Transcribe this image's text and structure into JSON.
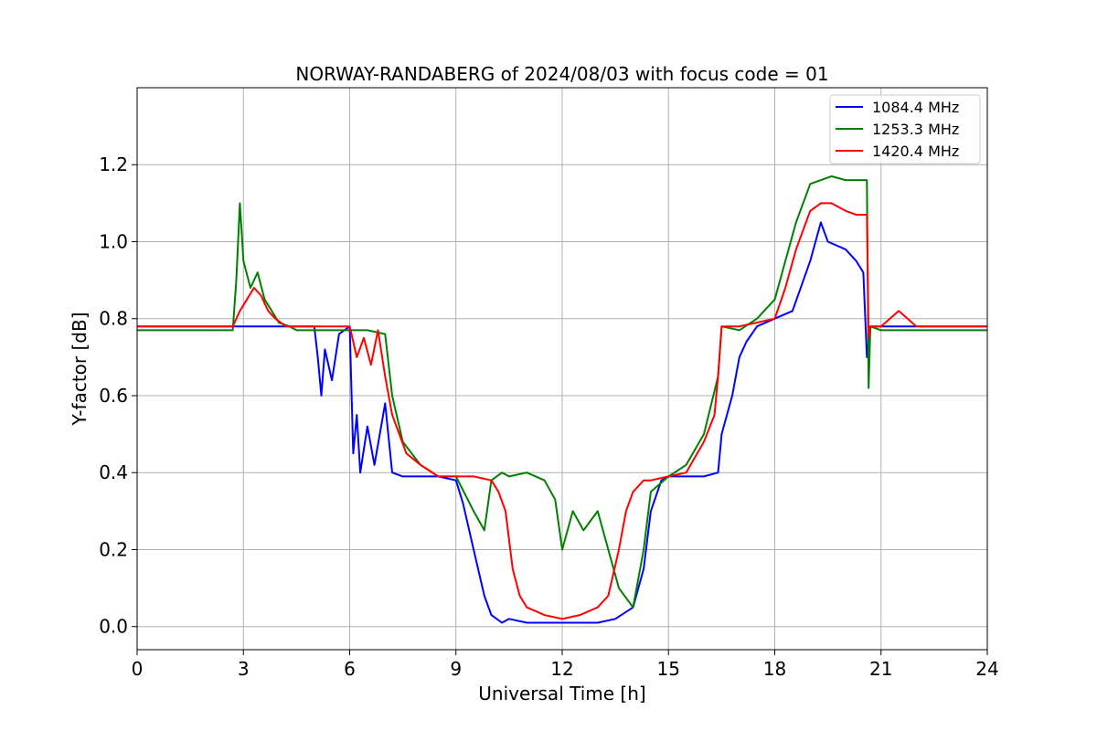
{
  "chart_data": {
    "type": "line",
    "title": "NORWAY-RANDABERG of 2024/08/03 with focus code = 01",
    "xlabel": "Universal Time [h]",
    "ylabel": "Y-factor [dB]",
    "xlim": [
      0,
      24
    ],
    "ylim": [
      -0.06,
      1.4
    ],
    "xticks": [
      0,
      3,
      6,
      9,
      12,
      15,
      18,
      21,
      24
    ],
    "yticks": [
      0.0,
      0.2,
      0.4,
      0.6,
      0.8,
      1.0,
      1.2
    ],
    "xtick_labels": [
      "0",
      "3",
      "6",
      "9",
      "12",
      "15",
      "18",
      "21",
      "24"
    ],
    "ytick_labels": [
      "0.0",
      "0.2",
      "0.4",
      "0.6",
      "0.8",
      "1.0",
      "1.2"
    ],
    "grid": true,
    "legend_position": "top-right",
    "series": [
      {
        "name": "1084.4 MHz",
        "color": "#0000ff",
        "x": [
          0.0,
          2.8,
          3.0,
          3.5,
          4.0,
          5.0,
          5.1,
          5.2,
          5.3,
          5.5,
          5.7,
          6.0,
          6.1,
          6.2,
          6.3,
          6.5,
          6.7,
          7.0,
          7.2,
          7.5,
          8.0,
          8.5,
          9.0,
          9.2,
          9.5,
          9.8,
          10.0,
          10.3,
          10.5,
          11.0,
          11.5,
          12.0,
          12.5,
          13.0,
          13.5,
          14.0,
          14.3,
          14.5,
          14.8,
          15.0,
          15.5,
          16.0,
          16.4,
          16.5,
          16.8,
          17.0,
          17.2,
          17.5,
          18.0,
          18.5,
          19.0,
          19.3,
          19.5,
          20.0,
          20.3,
          20.5,
          20.6,
          20.7,
          21.0,
          22.0,
          23.0,
          24.0
        ],
        "y": [
          0.78,
          0.78,
          0.78,
          0.78,
          0.78,
          0.78,
          0.7,
          0.6,
          0.72,
          0.64,
          0.76,
          0.78,
          0.45,
          0.55,
          0.4,
          0.52,
          0.42,
          0.58,
          0.4,
          0.39,
          0.39,
          0.39,
          0.38,
          0.32,
          0.2,
          0.08,
          0.03,
          0.01,
          0.02,
          0.01,
          0.01,
          0.01,
          0.01,
          0.01,
          0.02,
          0.05,
          0.15,
          0.3,
          0.38,
          0.39,
          0.39,
          0.39,
          0.4,
          0.5,
          0.6,
          0.7,
          0.74,
          0.78,
          0.8,
          0.82,
          0.95,
          1.05,
          1.0,
          0.98,
          0.95,
          0.92,
          0.7,
          0.78,
          0.78,
          0.78,
          0.78,
          0.78
        ]
      },
      {
        "name": "1253.3 MHz",
        "color": "#008000",
        "x": [
          0.0,
          2.7,
          2.8,
          2.9,
          3.0,
          3.2,
          3.4,
          3.6,
          3.8,
          4.0,
          4.3,
          4.5,
          5.0,
          6.0,
          6.5,
          7.0,
          7.2,
          7.5,
          8.0,
          8.5,
          9.0,
          9.5,
          9.8,
          10.0,
          10.3,
          10.5,
          11.0,
          11.5,
          11.8,
          12.0,
          12.3,
          12.6,
          13.0,
          13.3,
          13.6,
          14.0,
          14.3,
          14.5,
          15.0,
          15.5,
          16.0,
          16.4,
          16.5,
          17.0,
          17.5,
          18.0,
          18.3,
          18.6,
          19.0,
          19.3,
          19.6,
          20.0,
          20.3,
          20.6,
          20.65,
          20.7,
          21.0,
          22.0,
          23.0,
          24.0
        ],
        "y": [
          0.77,
          0.77,
          0.9,
          1.1,
          0.95,
          0.88,
          0.92,
          0.85,
          0.82,
          0.79,
          0.78,
          0.77,
          0.77,
          0.77,
          0.77,
          0.76,
          0.6,
          0.48,
          0.42,
          0.39,
          0.39,
          0.3,
          0.25,
          0.38,
          0.4,
          0.39,
          0.4,
          0.38,
          0.33,
          0.2,
          0.3,
          0.25,
          0.3,
          0.2,
          0.1,
          0.05,
          0.2,
          0.35,
          0.39,
          0.42,
          0.5,
          0.65,
          0.78,
          0.77,
          0.8,
          0.85,
          0.95,
          1.05,
          1.15,
          1.16,
          1.17,
          1.16,
          1.16,
          1.16,
          0.62,
          0.78,
          0.77,
          0.77,
          0.77,
          0.77
        ]
      },
      {
        "name": "1420.4 MHz",
        "color": "#ff0000",
        "x": [
          0.0,
          2.7,
          2.9,
          3.1,
          3.3,
          3.5,
          3.7,
          3.9,
          4.2,
          5.0,
          6.0,
          6.2,
          6.4,
          6.6,
          6.8,
          7.0,
          7.2,
          7.4,
          7.6,
          8.0,
          8.5,
          9.0,
          9.5,
          10.0,
          10.2,
          10.4,
          10.6,
          10.8,
          11.0,
          11.5,
          12.0,
          12.5,
          13.0,
          13.3,
          13.6,
          13.8,
          14.0,
          14.3,
          14.5,
          15.0,
          15.5,
          16.0,
          16.3,
          16.4,
          16.5,
          17.0,
          17.5,
          18.0,
          18.3,
          18.6,
          19.0,
          19.3,
          19.6,
          20.0,
          20.3,
          20.6,
          20.65,
          20.7,
          21.0,
          21.5,
          22.0,
          23.0,
          24.0
        ],
        "y": [
          0.78,
          0.78,
          0.82,
          0.85,
          0.88,
          0.86,
          0.82,
          0.8,
          0.78,
          0.78,
          0.78,
          0.7,
          0.75,
          0.68,
          0.77,
          0.65,
          0.55,
          0.5,
          0.45,
          0.42,
          0.39,
          0.39,
          0.39,
          0.38,
          0.35,
          0.3,
          0.15,
          0.08,
          0.05,
          0.03,
          0.02,
          0.03,
          0.05,
          0.08,
          0.2,
          0.3,
          0.35,
          0.38,
          0.38,
          0.39,
          0.4,
          0.48,
          0.55,
          0.65,
          0.78,
          0.78,
          0.79,
          0.8,
          0.88,
          0.98,
          1.08,
          1.1,
          1.1,
          1.08,
          1.07,
          1.07,
          0.75,
          0.78,
          0.78,
          0.82,
          0.78,
          0.78,
          0.78
        ]
      }
    ]
  }
}
